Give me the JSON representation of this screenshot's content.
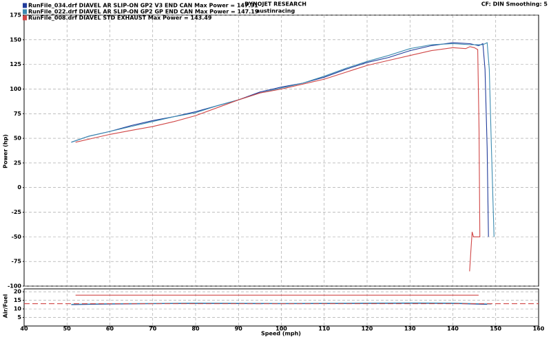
{
  "chart_data": [
    {
      "type": "line",
      "title": "DYNOJET RESEARCH",
      "subtitle": "austinracing",
      "annotation": "CF: DIN  Smoothing: 5",
      "y_label": "Power (hp)",
      "ylim": [
        -100,
        175
      ],
      "yticks": [
        -100,
        -75,
        -50,
        -25,
        0,
        25,
        50,
        75,
        100,
        125,
        150,
        175
      ],
      "xlim": [
        40,
        160
      ],
      "grid": true,
      "legend": "top-left",
      "series": [
        {
          "name": "RunFile_034.drf DIAVEL AR SLIP-ON GP2 V3 END CAN Max Power = 147.31",
          "color": "#1f3a9a",
          "x": [
            51,
            55,
            60,
            65,
            70,
            75,
            80,
            85,
            90,
            95,
            100,
            105,
            110,
            115,
            120,
            125,
            130,
            135,
            140,
            144,
            146,
            147,
            147.5,
            148,
            148.3
          ],
          "values": [
            46,
            52,
            57,
            63,
            68,
            72,
            77,
            83,
            89,
            97,
            102,
            106,
            112,
            120,
            127,
            132,
            139,
            144,
            147,
            146,
            144,
            146,
            120,
            40,
            -50
          ]
        },
        {
          "name": "RunFile_022.drf DIAVEL AR SLIP-ON GP2 GP END CAN Max Power = 147.19",
          "color": "#3a8ab0",
          "x": [
            51,
            55,
            60,
            65,
            70,
            75,
            80,
            85,
            90,
            95,
            100,
            105,
            110,
            115,
            120,
            125,
            130,
            135,
            140,
            144,
            147,
            148,
            148.5,
            149,
            149.6
          ],
          "values": [
            46,
            52,
            57,
            62,
            67,
            72,
            76,
            83,
            89,
            96,
            101,
            106,
            113,
            121,
            128,
            134,
            141,
            145,
            146,
            145,
            145,
            147,
            120,
            40,
            -50
          ]
        },
        {
          "name": "RunFile_008.drf DIAVEL STD EXHAUST Max Power = 143.49",
          "color": "#d04545",
          "x": [
            52,
            55,
            60,
            65,
            70,
            75,
            80,
            85,
            90,
            95,
            100,
            105,
            110,
            115,
            120,
            125,
            130,
            135,
            140,
            143,
            144,
            145,
            145.8,
            146.1,
            146.3,
            144.8,
            144.5,
            144.2,
            143.9
          ],
          "values": [
            46,
            49,
            54,
            58,
            62,
            67,
            73,
            81,
            89,
            96,
            100,
            105,
            110,
            117,
            124,
            129,
            134,
            139,
            142,
            141,
            143,
            142,
            140,
            60,
            -50,
            -50,
            -45,
            -65,
            -85
          ]
        }
      ]
    },
    {
      "type": "line",
      "y_label": "Air/Fuel",
      "x_label": "Speed (mph)",
      "ylim": [
        0,
        21.7
      ],
      "yticks": [
        5,
        10,
        15,
        20
      ],
      "xlim": [
        40,
        160
      ],
      "xticks": [
        40,
        50,
        60,
        70,
        80,
        90,
        100,
        110,
        120,
        130,
        140,
        150,
        160
      ],
      "grid": true,
      "series": [
        {
          "color": "#1f3a9a",
          "x": [
            51,
            60,
            70,
            80,
            90,
            100,
            110,
            120,
            130,
            140,
            148
          ],
          "values": [
            12.5,
            12.8,
            13,
            13.2,
            13.1,
            13,
            13.1,
            13.2,
            13.3,
            13.2,
            12.6
          ]
        },
        {
          "color": "#3a8ab0",
          "x": [
            51,
            60,
            70,
            80,
            90,
            100,
            110,
            120,
            130,
            140,
            149
          ],
          "values": [
            12.7,
            13,
            13.2,
            13.4,
            13.3,
            13.2,
            13.3,
            13.4,
            13.5,
            13.4,
            12.8
          ]
        },
        {
          "color": "#d04545",
          "x": [
            52,
            146
          ],
          "values": [
            18,
            18
          ]
        },
        {
          "color": "#d04545",
          "dashed": true,
          "x": [
            40,
            160
          ],
          "values": [
            13,
            13
          ]
        }
      ]
    }
  ]
}
